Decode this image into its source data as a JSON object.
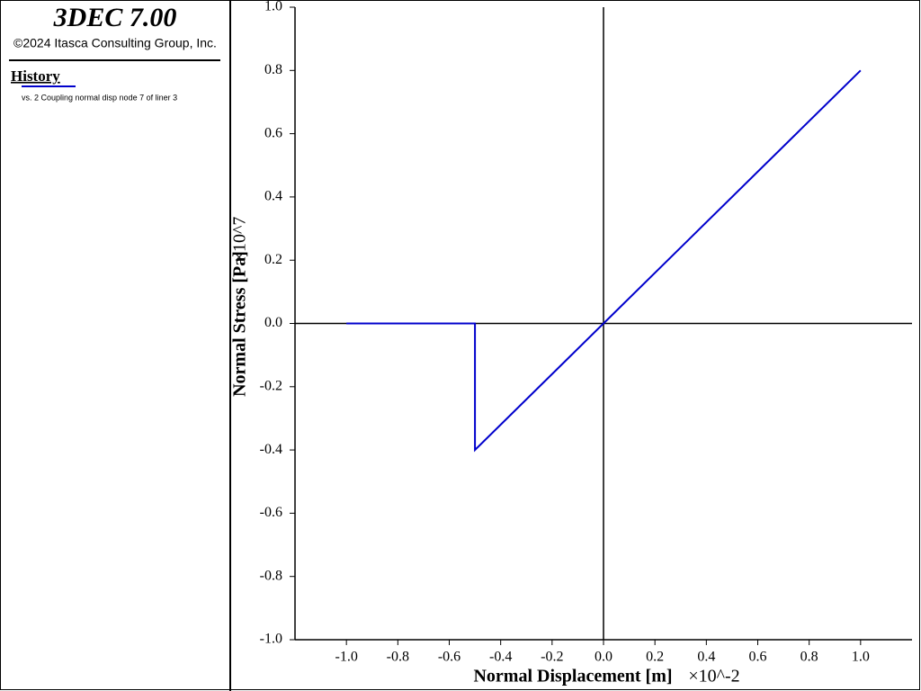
{
  "header": {
    "title": "3DEC 7.00",
    "copyright": "©2024 Itasca Consulting Group, Inc.",
    "section": "History"
  },
  "chart_data": {
    "type": "line",
    "x_label": "Normal Displacement [m]",
    "x_multiplier": "×10^-2",
    "y_label": "Normal Stress [Pa]",
    "y_multiplier": "×10^7",
    "x": [
      -1.0,
      -0.5,
      -0.5,
      0.0,
      1.0
    ],
    "series": [
      {
        "name": "vs. 2 Coupling normal disp node 7 of liner 3",
        "color": "#0000cc",
        "values": [
          0.0,
          0.0,
          -0.4,
          0.0,
          0.8
        ]
      }
    ],
    "xlim": [
      -1.2,
      1.2
    ],
    "xticks": [
      {
        "value": -1.0,
        "label": "-1.0"
      },
      -0.8,
      -0.6,
      -0.4,
      -0.2,
      {
        "value": 0,
        "label": "0.0"
      },
      0.2,
      0.4,
      0.6,
      0.8,
      {
        "value": 1.0,
        "label": "1.0"
      }
    ],
    "ylim": [
      -1.0,
      1.0
    ],
    "yticks": [
      {
        "value": -1.0,
        "label": "-1.0"
      },
      -0.8,
      -0.6,
      -0.4,
      -0.2,
      {
        "value": 0,
        "label": "0.0"
      },
      0.2,
      0.4,
      0.6,
      0.8,
      {
        "value": 1.0,
        "label": "1.0"
      }
    ],
    "zero_lines": true
  }
}
